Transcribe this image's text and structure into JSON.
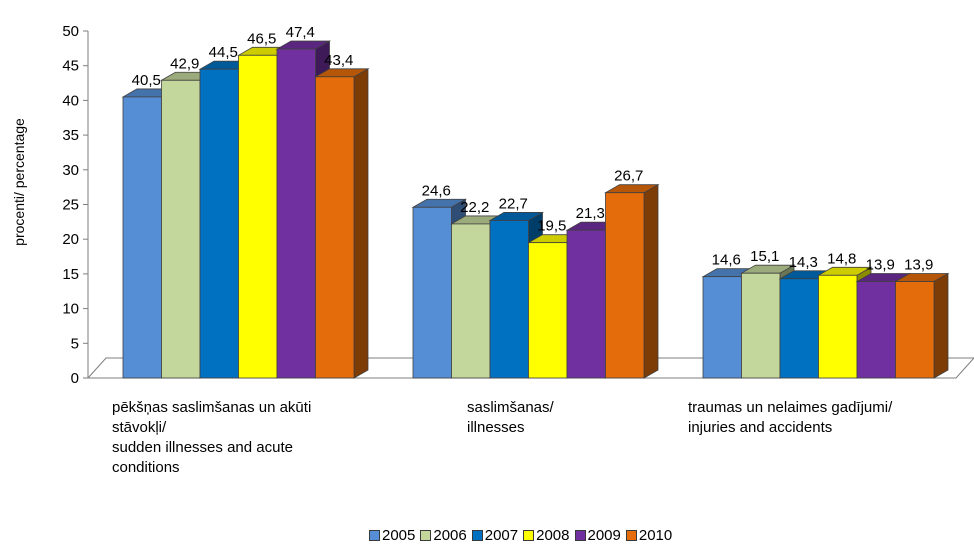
{
  "chart_data": {
    "type": "bar",
    "ylabel": "procenti/ percentage",
    "ylim": [
      0,
      50
    ],
    "yticks": [
      "0",
      "5",
      "10",
      "15",
      "20",
      "25",
      "30",
      "35",
      "40",
      "45",
      "50"
    ],
    "categories": [
      "pēkšņas saslimšanas un akūti stāvokļi/\nsudden illnesses and acute conditions",
      "saslimšanas/\nillnesses",
      "traumas un nelaimes gadījumi/\ninjuries and accidents"
    ],
    "category_display": [
      "pēkšņas saslimšanas un akūti\nstāvokļi/\nsudden illnesses and acute\nconditions",
      "saslimšanas/\nillnesses",
      "traumas un nelaimes gadījumi/\ninjuries and accidents"
    ],
    "series": [
      {
        "name": "2005",
        "color": "#558ED5",
        "values": [
          40.5,
          24.6,
          14.6
        ],
        "labels": [
          "40,5",
          "24,6",
          "14,6"
        ]
      },
      {
        "name": "2006",
        "color": "#C3D69B",
        "values": [
          42.9,
          22.2,
          15.1
        ],
        "labels": [
          "42,9",
          "22,2",
          "15,1"
        ]
      },
      {
        "name": "2007",
        "color": "#0070C0",
        "values": [
          44.5,
          22.7,
          14.3
        ],
        "labels": [
          "44,5",
          "22,7",
          "14,3"
        ]
      },
      {
        "name": "2008",
        "color": "#FFFF00",
        "values": [
          46.5,
          19.5,
          14.8
        ],
        "labels": [
          "46,5",
          "19,5",
          "14,8"
        ]
      },
      {
        "name": "2009",
        "color": "#7030A0",
        "values": [
          47.4,
          21.3,
          13.9
        ],
        "labels": [
          "47,4",
          "21,3",
          "13,9"
        ]
      },
      {
        "name": "2010",
        "color": "#E46C0A",
        "values": [
          43.4,
          26.7,
          13.9
        ],
        "labels": [
          "43,4",
          "26,7",
          "13,9"
        ]
      }
    ],
    "grid": false,
    "legend_position": "bottom"
  }
}
